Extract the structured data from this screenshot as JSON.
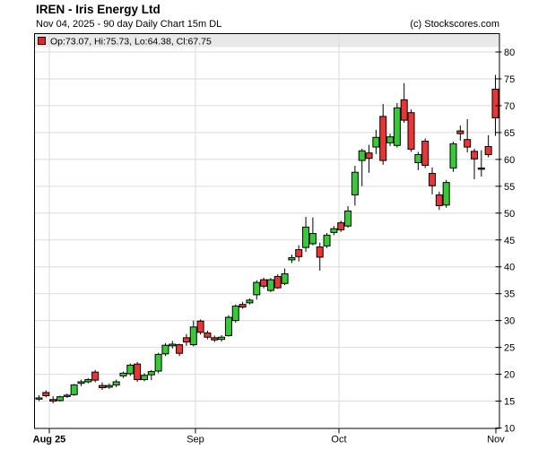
{
  "header": {
    "title": "IREN - Iris Energy Ltd",
    "subtitle": "Nov 04, 2025 - 90 day  Daily Chart 15m DL",
    "copyright": "(c) Stockscores.com"
  },
  "legend": {
    "label": "Op:73.07, Hi:75.73, Lo:64.38, Cl:67.75",
    "marker_color": "#ee2222"
  },
  "chart_data": {
    "type": "candlestick",
    "title": "IREN - Iris Energy Ltd",
    "period": "90 day Daily Chart",
    "as_of_date": "Nov 04, 2025",
    "ylim": [
      10,
      80
    ],
    "y_ticks": [
      10,
      15,
      20,
      25,
      30,
      35,
      40,
      45,
      50,
      55,
      60,
      65,
      70,
      75,
      80
    ],
    "x_ticks": [
      {
        "label": "Aug 25",
        "pos": 0.0327,
        "bold": true,
        "grid": true
      },
      {
        "label": "Sep",
        "pos": 0.3468,
        "bold": false,
        "grid": true
      },
      {
        "label": "Oct",
        "pos": 0.6551,
        "bold": false,
        "grid": true
      },
      {
        "label": "Nov",
        "pos": 0.9923,
        "bold": false,
        "grid": false
      }
    ],
    "grid": true,
    "legend_position": "top",
    "last_quote": {
      "open": 73.07,
      "high": 75.73,
      "low": 64.38,
      "close": 67.75
    },
    "colors": {
      "up": "#33cc33",
      "down": "#ee3333",
      "wick": "#000000",
      "grid": "#dbdbdb",
      "legend_bg": "#e8e8e8"
    },
    "candles_format": [
      "open",
      "high",
      "low",
      "close"
    ],
    "candles": [
      [
        15.4,
        16.1,
        15.0,
        15.6
      ],
      [
        16.6,
        17.0,
        15.7,
        16.0
      ],
      [
        15.3,
        15.9,
        14.6,
        15.0
      ],
      [
        15.1,
        16.0,
        14.9,
        15.8
      ],
      [
        15.9,
        16.4,
        15.6,
        16.1
      ],
      [
        16.2,
        18.2,
        16.0,
        18.0
      ],
      [
        18.3,
        19.0,
        17.8,
        18.6
      ],
      [
        18.6,
        19.3,
        18.3,
        19.0
      ],
      [
        20.4,
        20.8,
        18.5,
        18.9
      ],
      [
        17.9,
        18.5,
        17.1,
        17.5
      ],
      [
        17.6,
        18.3,
        17.3,
        17.9
      ],
      [
        18.0,
        19.0,
        17.6,
        18.6
      ],
      [
        19.7,
        20.5,
        19.3,
        20.2
      ],
      [
        20.1,
        22.0,
        19.7,
        21.7
      ],
      [
        21.9,
        22.3,
        18.6,
        19.0
      ],
      [
        19.0,
        20.2,
        18.7,
        19.8
      ],
      [
        19.9,
        20.8,
        18.9,
        20.5
      ],
      [
        20.6,
        24.0,
        20.2,
        23.7
      ],
      [
        23.8,
        25.8,
        23.4,
        25.4
      ],
      [
        25.3,
        26.2,
        24.8,
        25.6
      ],
      [
        25.5,
        25.7,
        23.4,
        23.9
      ],
      [
        26.8,
        27.5,
        25.3,
        26.0
      ],
      [
        25.5,
        30.0,
        25.2,
        28.8
      ],
      [
        29.9,
        30.2,
        27.4,
        27.8
      ],
      [
        27.7,
        28.1,
        26.5,
        26.9
      ],
      [
        26.8,
        27.2,
        26.0,
        26.4
      ],
      [
        26.5,
        27.3,
        26.1,
        26.9
      ],
      [
        27.2,
        31.0,
        27.0,
        30.6
      ],
      [
        30.0,
        33.0,
        29.6,
        32.7
      ],
      [
        33.0,
        33.5,
        32.2,
        32.5
      ],
      [
        33.3,
        34.1,
        33.0,
        33.8
      ],
      [
        34.8,
        37.5,
        33.9,
        37.1
      ],
      [
        37.6,
        38.0,
        36.0,
        36.4
      ],
      [
        35.6,
        37.9,
        35.3,
        37.6
      ],
      [
        38.2,
        38.6,
        35.9,
        36.1
      ],
      [
        36.9,
        39.7,
        36.6,
        38.7
      ],
      [
        41.3,
        42.3,
        40.7,
        41.7
      ],
      [
        43.2,
        44.0,
        41.0,
        41.9
      ],
      [
        43.6,
        49.3,
        42.8,
        47.4
      ],
      [
        44.3,
        49.2,
        44.0,
        46.2
      ],
      [
        43.7,
        44.5,
        39.3,
        41.8
      ],
      [
        43.9,
        46.3,
        43.5,
        45.9
      ],
      [
        46.4,
        47.6,
        45.9,
        47.1
      ],
      [
        48.2,
        48.6,
        46.5,
        46.9
      ],
      [
        47.6,
        51.3,
        47.3,
        50.4
      ],
      [
        53.4,
        58.8,
        51.4,
        57.6
      ],
      [
        59.8,
        62.0,
        55.0,
        61.6
      ],
      [
        61.2,
        62.7,
        57.5,
        60.2
      ],
      [
        62.3,
        65.5,
        61.0,
        64.1
      ],
      [
        68.0,
        70.3,
        59.0,
        59.8
      ],
      [
        63.1,
        64.8,
        62.5,
        64.2
      ],
      [
        62.6,
        70.5,
        62.2,
        69.6
      ],
      [
        71.1,
        74.2,
        66.8,
        67.3
      ],
      [
        68.7,
        69.3,
        61.4,
        61.9
      ],
      [
        59.4,
        61.4,
        58.0,
        60.9
      ],
      [
        63.4,
        63.9,
        58.4,
        58.9
      ],
      [
        57.4,
        58.5,
        53.5,
        55.1
      ],
      [
        53.4,
        54.0,
        50.6,
        51.4
      ],
      [
        51.5,
        56.2,
        51.0,
        55.7
      ],
      [
        58.4,
        63.3,
        57.7,
        62.9
      ],
      [
        65.3,
        66.3,
        63.5,
        64.8
      ],
      [
        63.7,
        67.5,
        61.3,
        62.3
      ],
      [
        61.5,
        62.0,
        56.3,
        60.1
      ],
      [
        58.4,
        61.7,
        56.8,
        58.2
      ],
      [
        62.4,
        64.5,
        60.4,
        60.9
      ],
      [
        73.07,
        75.73,
        64.38,
        67.75
      ]
    ]
  }
}
